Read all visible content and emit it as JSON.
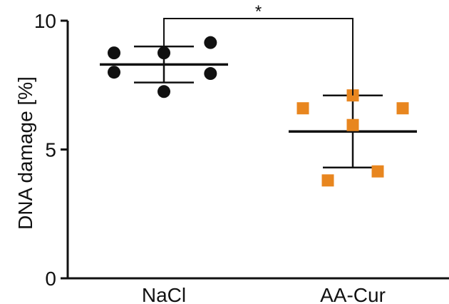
{
  "chart_data": {
    "type": "scatter",
    "ylabel": "DNA damage [%]",
    "ylim": [
      0,
      10
    ],
    "yticks": [
      0,
      5,
      10
    ],
    "categories": [
      "NaCl",
      "AA-Cur"
    ],
    "series": [
      {
        "name": "NaCl",
        "color": "#111111",
        "marker": "circle",
        "points": [
          {
            "pos": -0.3,
            "y": 8.75
          },
          {
            "pos": 0.0,
            "y": 8.75
          },
          {
            "pos": 0.28,
            "y": 9.15
          },
          {
            "pos": -0.3,
            "y": 8.0
          },
          {
            "pos": 0.28,
            "y": 7.95
          },
          {
            "pos": 0.0,
            "y": 7.25
          }
        ],
        "mean": 8.3,
        "sd_upper": 9.0,
        "sd_lower": 7.6
      },
      {
        "name": "AA-Cur",
        "color": "#E8861F",
        "marker": "square",
        "points": [
          {
            "pos": 0.0,
            "y": 7.1
          },
          {
            "pos": -0.3,
            "y": 6.6
          },
          {
            "pos": 0.3,
            "y": 6.6
          },
          {
            "pos": 0.0,
            "y": 5.95
          },
          {
            "pos": 0.15,
            "y": 4.15
          },
          {
            "pos": -0.15,
            "y": 3.8
          }
        ],
        "mean": 5.7,
        "sd_upper": 7.1,
        "sd_lower": 4.3
      }
    ],
    "significance": {
      "between": [
        "NaCl",
        "AA-Cur"
      ],
      "label": "*"
    }
  }
}
